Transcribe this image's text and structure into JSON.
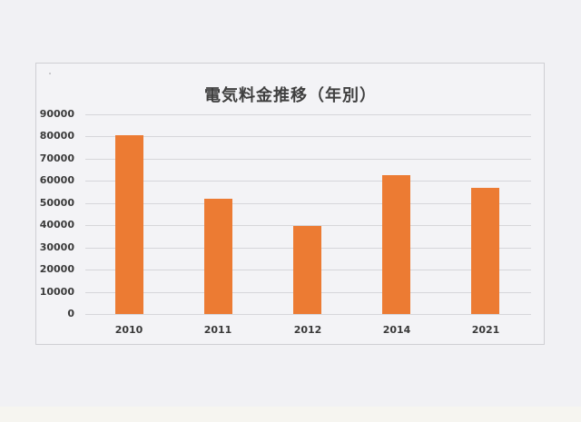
{
  "chart_data": {
    "type": "bar",
    "title": "電気料金推移（年別）",
    "xlabel": "",
    "ylabel": "",
    "categories": [
      "2010",
      "2011",
      "2012",
      "2014",
      "2021"
    ],
    "values": [
      80500,
      52000,
      39500,
      62500,
      57000
    ],
    "ylim": [
      0,
      90000
    ],
    "yticks": [
      0,
      10000,
      20000,
      30000,
      40000,
      50000,
      60000,
      70000,
      80000,
      90000
    ],
    "ytick_labels": [
      "0",
      "10000",
      "20000",
      "30000",
      "40000",
      "50000",
      "60000",
      "70000",
      "80000",
      "90000"
    ],
    "grid": true,
    "legend": null,
    "bar_color": "#ED7D31"
  },
  "colors": {
    "bar": "#ec7b33",
    "gridline": "#d6d6da",
    "background": "#f1f1f4",
    "text": "#3a3a3a"
  }
}
